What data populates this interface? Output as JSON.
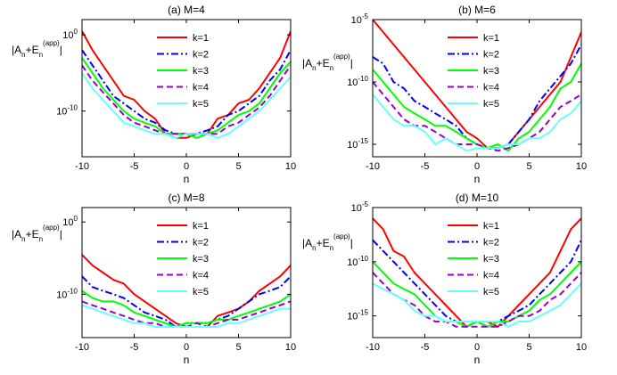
{
  "chart_data": [
    {
      "type": "line",
      "title": "(a) M=4",
      "xlabel": "n",
      "ylabel": "|A_n+E_n^(app)|",
      "yscale": "log",
      "xlim": [
        -10,
        10
      ],
      "ylim": [
        1e-16,
        100.0
      ],
      "xticks": [
        -10,
        -5,
        0,
        5,
        10
      ],
      "yticks": [
        {
          "value": 1,
          "label": "10",
          "exp": "0"
        },
        {
          "value": 1e-10,
          "label": "10",
          "exp": "-10"
        }
      ],
      "legend": "top-center",
      "x": [
        -10,
        -9,
        -8,
        -7,
        -6,
        -5,
        -4,
        -3,
        -2,
        -1,
        0,
        1,
        2,
        3,
        4,
        5,
        6,
        7,
        8,
        9,
        10
      ],
      "series": [
        {
          "name": "k=1",
          "color": "#ff0000",
          "dash": "solid",
          "values": [
            3.0,
            0.01,
            0.0001,
            1e-06,
            1e-08,
            3e-09,
            1e-10,
            1e-11,
            1e-13,
            3e-14,
            3e-14,
            1e-13,
            1e-13,
            1e-11,
            3e-11,
            1e-09,
            3e-09,
            1e-07,
            1e-05,
            0.001,
            3.0
          ]
        },
        {
          "name": "k=2",
          "color": "#0000ff",
          "dash": "dashdot",
          "values": [
            0.01,
            0.0001,
            1e-06,
            1e-08,
            1e-09,
            1e-10,
            1e-11,
            3e-12,
            3e-13,
            1e-13,
            1e-13,
            1e-13,
            3e-13,
            1e-12,
            3e-11,
            1e-10,
            1e-09,
            1e-08,
            1e-06,
            3e-05,
            0.01
          ]
        },
        {
          "name": "k=3",
          "color": "#00ff00",
          "dash": "solid",
          "values": [
            0.001,
            1e-05,
            1e-07,
            3e-09,
            1e-10,
            1e-11,
            3e-12,
            1e-12,
            1e-13,
            1e-13,
            1e-13,
            3e-14,
            1e-13,
            3e-13,
            3e-12,
            3e-11,
            1e-10,
            1e-09,
            1e-07,
            1e-05,
            0.0003
          ]
        },
        {
          "name": "k=4",
          "color": "#9900cc",
          "dash": "dashed",
          "values": [
            0.0001,
            1e-06,
            3e-08,
            1e-09,
            3e-11,
            3e-12,
            1e-12,
            3e-13,
            1e-13,
            1e-13,
            1e-13,
            1e-13,
            1e-13,
            1e-13,
            1e-12,
            3e-12,
            3e-11,
            3e-10,
            1e-08,
            1e-06,
            0.0001
          ]
        },
        {
          "name": "k=5",
          "color": "#66ffff",
          "dash": "solid",
          "values": [
            1e-05,
            1e-07,
            3e-09,
            1e-10,
            3e-12,
            1e-12,
            3e-13,
            1e-13,
            1e-13,
            3e-14,
            1e-13,
            1e-13,
            1e-13,
            3e-14,
            1e-13,
            1e-12,
            1e-11,
            1e-10,
            3e-09,
            1e-07,
            3e-06
          ]
        }
      ]
    },
    {
      "type": "line",
      "title": "(b) M=6",
      "xlabel": "n",
      "ylabel": "|A_n+E_n^(app)|",
      "yscale": "log",
      "xlim": [
        -10,
        10
      ],
      "ylim": [
        1e-16,
        1e-05
      ],
      "xticks": [
        -10,
        -5,
        0,
        5,
        10
      ],
      "yticks": [
        {
          "value": 1e-05,
          "label": "10",
          "exp": "-5"
        },
        {
          "value": 1e-10,
          "label": "10",
          "exp": "-10"
        },
        {
          "value": 1e-15,
          "label": "10",
          "exp": "-15"
        }
      ],
      "legend": "top-center",
      "x": [
        -10,
        -9,
        -8,
        -7,
        -6,
        -5,
        -4,
        -3,
        -2,
        -1,
        0,
        1,
        2,
        3,
        4,
        5,
        6,
        7,
        8,
        9,
        10
      ],
      "series": [
        {
          "name": "k=1",
          "color": "#ff0000",
          "dash": "solid",
          "values": [
            1e-05,
            1e-06,
            1e-07,
            1e-08,
            1e-09,
            1e-10,
            1e-11,
            1e-12,
            1e-13,
            1e-14,
            3e-15,
            5e-16,
            5e-16,
            1e-15,
            1e-14,
            1e-13,
            1e-12,
            1e-11,
            1e-10,
            1e-08,
            1e-06
          ]
        },
        {
          "name": "k=2",
          "color": "#0000ff",
          "dash": "dashdot",
          "values": [
            1e-08,
            3e-09,
            1e-10,
            3e-11,
            3e-12,
            1e-12,
            3e-13,
            1e-13,
            3e-14,
            3e-15,
            1e-15,
            5e-16,
            5e-16,
            1e-15,
            1e-14,
            1e-13,
            3e-12,
            3e-11,
            3e-10,
            3e-09,
            1e-07
          ]
        },
        {
          "name": "k=3",
          "color": "#00ff00",
          "dash": "solid",
          "values": [
            1e-09,
            1e-10,
            1e-11,
            1e-12,
            3e-13,
            1e-13,
            3e-14,
            3e-14,
            1e-14,
            3e-15,
            1e-15,
            5e-16,
            1e-15,
            3e-16,
            3e-15,
            1e-14,
            1e-13,
            1e-12,
            3e-11,
            1e-10,
            3e-09
          ]
        },
        {
          "name": "k=4",
          "color": "#9900cc",
          "dash": "dashed",
          "values": [
            1e-10,
            1e-11,
            1e-12,
            1e-13,
            3e-14,
            3e-14,
            1e-14,
            3e-15,
            1e-15,
            1e-15,
            1e-15,
            5e-16,
            3e-16,
            5e-16,
            1e-15,
            3e-15,
            1e-14,
            1e-13,
            1e-12,
            3e-12,
            1e-11
          ]
        },
        {
          "name": "k=5",
          "color": "#66ffff",
          "dash": "solid",
          "values": [
            1e-11,
            1e-12,
            1e-13,
            3e-14,
            3e-14,
            1e-14,
            1e-15,
            3e-15,
            1e-15,
            3e-16,
            5e-16,
            5e-16,
            5e-16,
            1e-15,
            1e-15,
            3e-15,
            3e-15,
            1e-14,
            1e-13,
            3e-13,
            3e-12
          ]
        }
      ]
    },
    {
      "type": "line",
      "title": "(c) M=8",
      "xlabel": "n",
      "ylabel": "|A_n+E_n^(app)|",
      "yscale": "log",
      "xlim": [
        -10,
        10
      ],
      "ylim": [
        1e-16,
        100.0
      ],
      "xticks": [
        -10,
        -5,
        0,
        5,
        10
      ],
      "yticks": [
        {
          "value": 1,
          "label": "10",
          "exp": "0"
        },
        {
          "value": 1e-10,
          "label": "10",
          "exp": "-10"
        }
      ],
      "legend": "top-center",
      "x": [
        -10,
        -9,
        -8,
        -7,
        -6,
        -5,
        -4,
        -3,
        -2,
        -1,
        0,
        1,
        2,
        3,
        4,
        5,
        6,
        7,
        8,
        9,
        10
      ],
      "series": [
        {
          "name": "k=1",
          "color": "#ff0000",
          "dash": "solid",
          "values": [
            3e-05,
            1e-06,
            1e-07,
            1e-08,
            3e-09,
            1e-10,
            1e-11,
            1e-12,
            1e-13,
            1e-14,
            3e-15,
            3e-15,
            3e-15,
            1e-13,
            3e-13,
            1e-12,
            1e-11,
            3e-10,
            3e-09,
            3e-08,
            1e-06
          ]
        },
        {
          "name": "k=2",
          "color": "#0000ff",
          "dash": "dashdot",
          "values": [
            3e-08,
            1e-09,
            3e-10,
            1e-10,
            3e-11,
            3e-12,
            3e-13,
            1e-13,
            3e-14,
            3e-15,
            1e-14,
            1e-14,
            1e-14,
            3e-14,
            1e-13,
            1e-12,
            1e-11,
            1e-10,
            3e-10,
            1e-09,
            3e-08
          ]
        },
        {
          "name": "k=3",
          "color": "#00ff00",
          "dash": "solid",
          "values": [
            3e-10,
            3e-11,
            1e-11,
            1e-11,
            3e-12,
            3e-13,
            1e-13,
            3e-14,
            1e-14,
            3e-15,
            1e-14,
            1e-14,
            1e-14,
            3e-14,
            3e-14,
            1e-13,
            3e-13,
            1e-12,
            3e-12,
            1e-11,
            1e-10
          ]
        },
        {
          "name": "k=4",
          "color": "#9900cc",
          "dash": "dashed",
          "values": [
            1e-11,
            3e-12,
            1e-12,
            3e-13,
            1e-13,
            3e-14,
            1e-14,
            1e-14,
            3e-15,
            3e-15,
            3e-15,
            1e-14,
            3e-15,
            1e-14,
            3e-14,
            3e-14,
            1e-13,
            3e-13,
            1e-12,
            3e-12,
            1e-11
          ]
        },
        {
          "name": "k=5",
          "color": "#66ffff",
          "dash": "solid",
          "values": [
            3e-12,
            1e-12,
            3e-13,
            1e-13,
            3e-14,
            1e-14,
            1e-14,
            3e-15,
            3e-15,
            3e-15,
            3e-15,
            3e-15,
            3e-15,
            3e-15,
            1e-14,
            1e-14,
            3e-14,
            1e-13,
            3e-13,
            1e-12,
            1e-12
          ]
        }
      ]
    },
    {
      "type": "line",
      "title": "(d) M=10",
      "xlabel": "n",
      "ylabel": "|A_n+E_n^(app)|",
      "yscale": "log",
      "xlim": [
        -10,
        10
      ],
      "ylim": [
        1e-17,
        1e-05
      ],
      "xticks": [
        -10,
        -5,
        0,
        5,
        10
      ],
      "yticks": [
        {
          "value": 1e-05,
          "label": "10",
          "exp": "-5"
        },
        {
          "value": 1e-10,
          "label": "10",
          "exp": "-10"
        },
        {
          "value": 1e-15,
          "label": "10",
          "exp": "-15"
        }
      ],
      "legend": "top-center",
      "x": [
        -10,
        -9,
        -8,
        -7,
        -6,
        -5,
        -4,
        -3,
        -2,
        -1,
        0,
        1,
        2,
        3,
        4,
        5,
        6,
        7,
        8,
        9,
        10
      ],
      "series": [
        {
          "name": "k=1",
          "color": "#ff0000",
          "dash": "solid",
          "values": [
            1e-06,
            1e-07,
            1e-09,
            3e-10,
            1e-11,
            1e-12,
            1e-13,
            1e-14,
            1e-15,
            1e-16,
            3e-16,
            3e-16,
            1e-16,
            1e-15,
            1e-14,
            1e-13,
            1e-12,
            1e-11,
            1e-09,
            1e-07,
            1e-06
          ]
        },
        {
          "name": "k=2",
          "color": "#0000ff",
          "dash": "dashdot",
          "values": [
            1e-08,
            1e-09,
            1e-10,
            1e-11,
            1e-12,
            1e-13,
            1e-14,
            1e-15,
            3e-16,
            1e-16,
            3e-16,
            1e-16,
            3e-16,
            1e-15,
            3e-15,
            1e-14,
            1e-13,
            1e-12,
            1e-11,
            1e-10,
            1e-08
          ]
        },
        {
          "name": "k=3",
          "color": "#00ff00",
          "dash": "solid",
          "values": [
            1e-10,
            1e-11,
            1e-12,
            3e-13,
            1e-13,
            1e-14,
            1e-15,
            3e-16,
            3e-16,
            1e-16,
            3e-16,
            1e-16,
            3e-16,
            3e-16,
            1e-15,
            3e-15,
            3e-14,
            1e-13,
            1e-12,
            1e-11,
            1e-10
          ]
        },
        {
          "name": "k=4",
          "color": "#9900cc",
          "dash": "dashed",
          "values": [
            1e-11,
            1e-12,
            1e-13,
            3e-14,
            1e-14,
            1e-15,
            3e-16,
            3e-16,
            1e-16,
            1e-16,
            1e-16,
            1e-16,
            1e-16,
            3e-16,
            1e-15,
            1e-15,
            3e-15,
            3e-14,
            1e-13,
            1e-12,
            1e-11
          ]
        },
        {
          "name": "k=5",
          "color": "#66ffff",
          "dash": "solid",
          "values": [
            1e-12,
            3e-13,
            1e-13,
            3e-14,
            3e-15,
            1e-15,
            1e-15,
            3e-16,
            3e-16,
            3e-16,
            3e-16,
            3e-16,
            3e-16,
            1e-16,
            3e-16,
            3e-16,
            1e-15,
            3e-15,
            1e-14,
            1e-13,
            1e-12
          ]
        }
      ]
    }
  ]
}
